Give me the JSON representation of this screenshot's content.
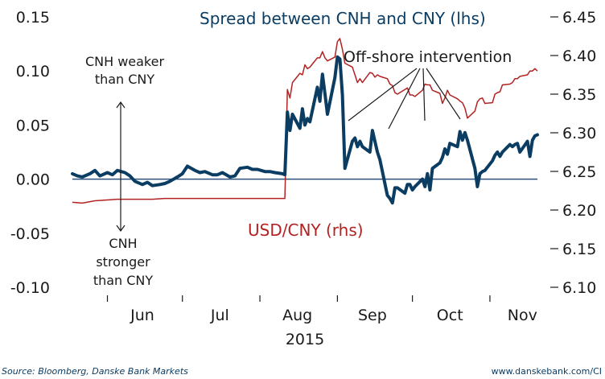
{
  "chart_data": {
    "type": "line",
    "year_label": "2015",
    "months": [
      "Jun",
      "Jul",
      "Aug",
      "Sep",
      "Oct",
      "Nov"
    ],
    "left_axis": {
      "min": -0.1,
      "max": 0.15,
      "ticks": [
        "0.15",
        "0.10",
        "0.05",
        "0.00",
        "-0.05",
        "-0.10"
      ],
      "tick_values": [
        0.15,
        0.1,
        0.05,
        0.0,
        -0.05,
        -0.1
      ]
    },
    "right_axis": {
      "min": 6.1,
      "max": 6.45,
      "ticks": [
        "6.45",
        "6.40",
        "6.35",
        "6.30",
        "6.25",
        "6.20",
        "6.15",
        "6.10"
      ],
      "tick_values": [
        6.45,
        6.4,
        6.35,
        6.3,
        6.25,
        6.2,
        6.15,
        6.1
      ]
    },
    "start_date": "2015-05-18",
    "end_date": "2015-11-20",
    "series": [
      {
        "name": "Spread between CNH and CNY (lhs)",
        "axis": "left",
        "color": "#0b3d63",
        "dates": [
          "2015-05-18",
          "2015-05-20",
          "2015-05-22",
          "2015-05-25",
          "2015-05-27",
          "2015-05-29",
          "2015-06-01",
          "2015-06-03",
          "2015-06-05",
          "2015-06-08",
          "2015-06-10",
          "2015-06-12",
          "2015-06-15",
          "2015-06-17",
          "2015-06-19",
          "2015-06-22",
          "2015-06-24",
          "2015-06-26",
          "2015-06-29",
          "2015-07-01",
          "2015-07-03",
          "2015-07-06",
          "2015-07-08",
          "2015-07-10",
          "2015-07-13",
          "2015-07-15",
          "2015-07-17",
          "2015-07-20",
          "2015-07-22",
          "2015-07-24",
          "2015-07-27",
          "2015-07-29",
          "2015-07-31",
          "2015-08-03",
          "2015-08-05",
          "2015-08-07",
          "2015-08-10",
          "2015-08-11",
          "2015-08-12",
          "2015-08-13",
          "2015-08-14",
          "2015-08-17",
          "2015-08-18",
          "2015-08-19",
          "2015-08-20",
          "2015-08-21",
          "2015-08-24",
          "2015-08-25",
          "2015-08-26",
          "2015-08-27",
          "2015-08-28",
          "2015-08-31",
          "2015-09-01",
          "2015-09-02",
          "2015-09-03",
          "2015-09-04",
          "2015-09-07",
          "2015-09-08",
          "2015-09-09",
          "2015-09-10",
          "2015-09-11",
          "2015-09-14",
          "2015-09-15",
          "2015-09-16",
          "2015-09-17",
          "2015-09-18",
          "2015-09-21",
          "2015-09-22",
          "2015-09-23",
          "2015-09-24",
          "2015-09-25",
          "2015-09-28",
          "2015-09-29",
          "2015-09-30",
          "2015-10-01",
          "2015-10-02",
          "2015-10-05",
          "2015-10-06",
          "2015-10-07",
          "2015-10-08",
          "2015-10-09",
          "2015-10-12",
          "2015-10-13",
          "2015-10-14",
          "2015-10-15",
          "2015-10-16",
          "2015-10-19",
          "2015-10-20",
          "2015-10-21",
          "2015-10-22",
          "2015-10-23",
          "2015-10-26",
          "2015-10-27",
          "2015-10-28",
          "2015-10-29",
          "2015-10-30",
          "2015-11-02",
          "2015-11-03",
          "2015-11-04",
          "2015-11-05",
          "2015-11-06",
          "2015-11-09",
          "2015-11-10",
          "2015-11-11",
          "2015-11-12",
          "2015-11-13",
          "2015-11-16",
          "2015-11-17",
          "2015-11-18",
          "2015-11-19",
          "2015-11-20"
        ],
        "values": [
          0.005,
          0.003,
          0.002,
          0.005,
          0.008,
          0.003,
          0.006,
          0.004,
          0.008,
          0.006,
          0.003,
          -0.002,
          -0.005,
          -0.003,
          -0.006,
          -0.005,
          -0.004,
          -0.002,
          0.002,
          0.005,
          0.012,
          0.008,
          0.006,
          0.007,
          0.004,
          0.004,
          0.006,
          0.002,
          0.003,
          0.01,
          0.011,
          0.009,
          0.009,
          0.007,
          0.007,
          0.006,
          0.005,
          0.004,
          0.062,
          0.045,
          0.06,
          0.047,
          0.065,
          0.05,
          0.056,
          0.053,
          0.085,
          0.072,
          0.097,
          0.079,
          0.06,
          0.094,
          0.113,
          0.111,
          0.078,
          0.01,
          0.035,
          0.038,
          0.03,
          0.035,
          0.03,
          0.025,
          0.045,
          0.035,
          0.025,
          0.018,
          -0.015,
          -0.018,
          -0.022,
          -0.008,
          -0.008,
          -0.013,
          -0.005,
          -0.005,
          -0.01,
          -0.007,
          0.0,
          -0.007,
          0.005,
          -0.01,
          0.01,
          0.015,
          0.02,
          0.028,
          0.023,
          0.033,
          0.03,
          0.044,
          0.036,
          0.043,
          0.036,
          0.01,
          -0.007,
          0.005,
          0.007,
          0.008,
          0.017,
          0.022,
          0.025,
          0.021,
          0.025,
          0.032,
          0.03,
          0.032,
          0.033,
          0.025,
          0.035,
          0.021,
          0.036,
          0.04,
          0.041
        ]
      },
      {
        "name": "USD/CNY (rhs)",
        "axis": "right",
        "color": "#b22222",
        "dates": [
          "2015-05-18",
          "2015-05-22",
          "2015-05-27",
          "2015-06-01",
          "2015-06-05",
          "2015-06-10",
          "2015-06-15",
          "2015-06-19",
          "2015-06-24",
          "2015-06-29",
          "2015-07-03",
          "2015-07-08",
          "2015-07-13",
          "2015-07-17",
          "2015-07-22",
          "2015-07-27",
          "2015-07-31",
          "2015-08-05",
          "2015-08-10",
          "2015-08-11",
          "2015-08-12",
          "2015-08-13",
          "2015-08-14",
          "2015-08-17",
          "2015-08-18",
          "2015-08-19",
          "2015-08-20",
          "2015-08-21",
          "2015-08-24",
          "2015-08-25",
          "2015-08-26",
          "2015-08-27",
          "2015-08-28",
          "2015-08-31",
          "2015-09-01",
          "2015-09-02",
          "2015-09-03",
          "2015-09-04",
          "2015-09-07",
          "2015-09-08",
          "2015-09-09",
          "2015-09-10",
          "2015-09-11",
          "2015-09-14",
          "2015-09-15",
          "2015-09-16",
          "2015-09-17",
          "2015-09-18",
          "2015-09-21",
          "2015-09-22",
          "2015-09-23",
          "2015-09-24",
          "2015-09-25",
          "2015-09-28",
          "2015-09-29",
          "2015-09-30",
          "2015-10-01",
          "2015-10-02",
          "2015-10-05",
          "2015-10-06",
          "2015-10-07",
          "2015-10-08",
          "2015-10-09",
          "2015-10-12",
          "2015-10-13",
          "2015-10-14",
          "2015-10-15",
          "2015-10-16",
          "2015-10-19",
          "2015-10-20",
          "2015-10-21",
          "2015-10-22",
          "2015-10-23",
          "2015-10-26",
          "2015-10-27",
          "2015-10-28",
          "2015-10-29",
          "2015-10-30",
          "2015-11-02",
          "2015-11-03",
          "2015-11-04",
          "2015-11-05",
          "2015-11-06",
          "2015-11-09",
          "2015-11-10",
          "2015-11-11",
          "2015-11-12",
          "2015-11-13",
          "2015-11-16",
          "2015-11-17",
          "2015-11-18",
          "2015-11-19",
          "2015-11-20"
        ],
        "values": [
          6.21,
          6.209,
          6.212,
          6.213,
          6.214,
          6.214,
          6.214,
          6.214,
          6.215,
          6.215,
          6.215,
          6.215,
          6.215,
          6.215,
          6.215,
          6.215,
          6.215,
          6.215,
          6.215,
          6.215,
          6.356,
          6.345,
          6.365,
          6.377,
          6.375,
          6.388,
          6.383,
          6.385,
          6.397,
          6.397,
          6.405,
          6.397,
          6.393,
          6.398,
          6.418,
          6.422,
          6.408,
          6.39,
          6.385,
          6.375,
          6.365,
          6.37,
          6.365,
          6.378,
          6.377,
          6.372,
          6.375,
          6.373,
          6.37,
          6.363,
          6.361,
          6.352,
          6.35,
          6.356,
          6.358,
          6.349,
          6.349,
          6.347,
          6.355,
          6.363,
          6.362,
          6.362,
          6.355,
          6.351,
          6.338,
          6.345,
          6.355,
          6.349,
          6.344,
          6.341,
          6.339,
          6.332,
          6.319,
          6.328,
          6.34,
          6.344,
          6.345,
          6.338,
          6.339,
          6.35,
          6.352,
          6.353,
          6.362,
          6.363,
          6.365,
          6.37,
          6.37,
          6.373,
          6.375,
          6.38,
          6.38,
          6.383,
          6.38
        ]
      }
    ],
    "series_labels": {
      "spread": "Spread between CNH and CNY (lhs)",
      "usdcny": "USD/CNY (rhs)"
    },
    "annotations": {
      "weaker": [
        "CNH weaker",
        "than CNY"
      ],
      "stronger": [
        "CNH",
        "stronger",
        "than CNY"
      ],
      "intervention": "Off-shore intervention"
    },
    "zero_line": 0.0
  },
  "footer": {
    "source": "Source: Bloomberg, Danske Bank Markets",
    "website": "www.danskebank.com/CI"
  }
}
